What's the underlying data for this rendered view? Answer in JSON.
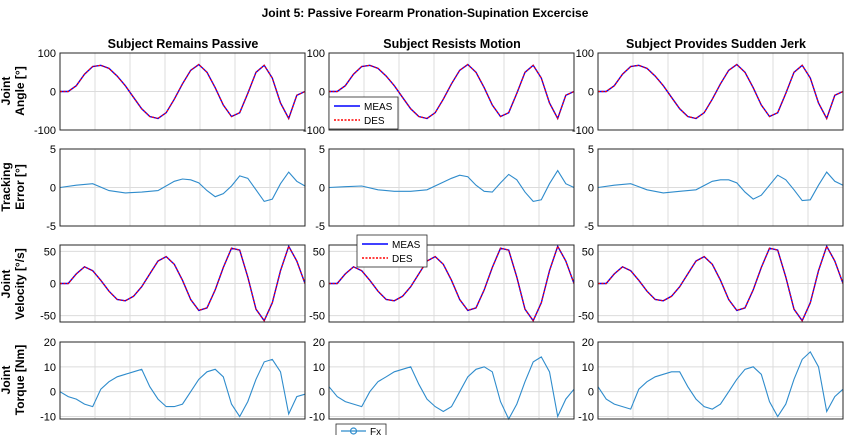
{
  "figure_title": "Joint 5: Passive Forearm Pronation-Supination Excercise",
  "column_titles": [
    "Subject Remains Passive",
    "Subject Resists Motion",
    "Subject Provides Sudden Jerk"
  ],
  "row_ylabels": [
    {
      "line1": "Joint",
      "line2": "Angle [°]"
    },
    {
      "line1": "Tracking",
      "line2": "Error [°]"
    },
    {
      "line1": "Joint",
      "line2": "Velocity [°/s]"
    },
    {
      "line1": "Joint",
      "line2": "Torque [Nm]"
    }
  ],
  "colors": {
    "meas": "#0000ff",
    "des": "#ff0000",
    "signal": "#2f8ccc",
    "grid": "#dcdcdc",
    "axis": "#262626"
  },
  "legends": {
    "angle": {
      "entries": [
        "MEAS",
        "DES"
      ]
    },
    "velocity": {
      "entries": [
        "MEAS",
        "DES"
      ]
    },
    "torque": {
      "entries": [
        "Fx"
      ]
    }
  },
  "chart_data": [
    {
      "type": "line",
      "row": "angle",
      "ylim": [
        -100,
        100
      ],
      "yticks": [
        -100,
        0,
        100
      ],
      "xlim": [
        0,
        15
      ],
      "grid": true,
      "series_names": [
        "MEAS",
        "DES"
      ],
      "columns": [
        {
          "x": [
            0,
            0.5,
            1,
            1.5,
            2,
            2.5,
            3,
            3.5,
            4,
            4.5,
            5,
            5.5,
            6,
            6.5,
            7,
            7.5,
            8,
            8.5,
            9,
            9.5,
            10,
            10.5,
            11,
            11.5,
            12,
            12.5,
            13,
            13.5,
            14,
            14.5,
            15
          ],
          "y": [
            0,
            0,
            15,
            45,
            65,
            68,
            60,
            40,
            15,
            -15,
            -45,
            -65,
            -70,
            -55,
            -20,
            20,
            55,
            70,
            50,
            10,
            -35,
            -65,
            -55,
            -5,
            50,
            68,
            35,
            -30,
            -70,
            -10,
            0
          ]
        },
        {
          "x": [
            0,
            0.5,
            1,
            1.5,
            2,
            2.5,
            3,
            3.5,
            4,
            4.5,
            5,
            5.5,
            6,
            6.5,
            7,
            7.5,
            8,
            8.5,
            9,
            9.5,
            10,
            10.5,
            11,
            11.5,
            12,
            12.5,
            13,
            13.5,
            14,
            14.5,
            15
          ],
          "y": [
            0,
            0,
            15,
            45,
            65,
            68,
            60,
            40,
            15,
            -15,
            -45,
            -65,
            -70,
            -55,
            -20,
            20,
            55,
            70,
            50,
            10,
            -35,
            -65,
            -55,
            -5,
            50,
            68,
            35,
            -30,
            -70,
            -10,
            0
          ]
        },
        {
          "x": [
            0,
            0.5,
            1,
            1.5,
            2,
            2.5,
            3,
            3.5,
            4,
            4.5,
            5,
            5.5,
            6,
            6.5,
            7,
            7.5,
            8,
            8.5,
            9,
            9.5,
            10,
            10.5,
            11,
            11.5,
            12,
            12.5,
            13,
            13.5,
            14,
            14.5,
            15
          ],
          "y": [
            0,
            0,
            15,
            45,
            65,
            68,
            60,
            40,
            15,
            -15,
            -45,
            -65,
            -70,
            -55,
            -20,
            20,
            55,
            70,
            50,
            10,
            -35,
            -65,
            -55,
            -5,
            50,
            68,
            35,
            -30,
            -70,
            -10,
            0
          ]
        }
      ]
    },
    {
      "type": "line",
      "row": "tracking_error",
      "ylim": [
        -5,
        5
      ],
      "yticks": [
        -5,
        0,
        5
      ],
      "xlim": [
        0,
        15
      ],
      "grid": true,
      "columns": [
        {
          "x": [
            0,
            1,
            2,
            3,
            4,
            5,
            6,
            7,
            7.5,
            8,
            8.5,
            9,
            9.5,
            10,
            10.5,
            11,
            11.5,
            12,
            12.5,
            13,
            13.5,
            14,
            14.5,
            15
          ],
          "y": [
            0,
            0.3,
            0.5,
            -0.4,
            -0.7,
            -0.6,
            -0.4,
            0.8,
            1.1,
            1.0,
            0.6,
            -0.4,
            -1.2,
            -0.8,
            0.2,
            1.5,
            1.2,
            -0.3,
            -1.8,
            -1.5,
            0.5,
            2.0,
            0.8,
            0.2
          ]
        },
        {
          "x": [
            0,
            1,
            2,
            3,
            4,
            5,
            6,
            7,
            7.5,
            8,
            8.5,
            9,
            9.5,
            10,
            10.5,
            11,
            11.5,
            12,
            12.5,
            13,
            13.5,
            14,
            14.5,
            15
          ],
          "y": [
            0,
            0.1,
            0.2,
            -0.3,
            -0.5,
            -0.5,
            -0.3,
            0.7,
            1.2,
            1.6,
            1.4,
            0.3,
            -0.5,
            -0.6,
            0.6,
            1.7,
            1.0,
            -0.6,
            -1.8,
            -1.6,
            0.5,
            2.2,
            0.5,
            0
          ]
        },
        {
          "x": [
            0,
            1,
            2,
            3,
            4,
            5,
            6,
            7,
            7.5,
            8,
            8.5,
            9,
            9.5,
            10,
            10.5,
            11,
            11.5,
            12,
            12.5,
            13,
            13.5,
            14,
            14.5,
            15
          ],
          "y": [
            0,
            0.3,
            0.5,
            -0.3,
            -0.7,
            -0.5,
            -0.3,
            0.8,
            1.0,
            1.0,
            0.6,
            -0.6,
            -1.5,
            -1.0,
            0.3,
            1.6,
            1.0,
            -0.3,
            -1.7,
            -1.6,
            0.3,
            2.0,
            0.8,
            0.3
          ]
        }
      ]
    },
    {
      "type": "line",
      "row": "velocity",
      "ylim": [
        -60,
        60
      ],
      "yticks": [
        -50,
        0,
        50
      ],
      "xlim": [
        0,
        15
      ],
      "grid": true,
      "series_names": [
        "MEAS",
        "DES"
      ],
      "columns": [
        {
          "x": [
            0,
            0.5,
            1,
            1.5,
            2,
            2.5,
            3,
            3.5,
            4,
            4.5,
            5,
            5.5,
            6,
            6.5,
            7,
            7.5,
            8,
            8.5,
            9,
            9.5,
            10,
            10.5,
            11,
            11.5,
            12,
            12.5,
            13,
            13.5,
            14,
            14.5,
            15
          ],
          "y": [
            0,
            0,
            15,
            26,
            20,
            5,
            -12,
            -25,
            -27,
            -20,
            -5,
            15,
            35,
            42,
            30,
            5,
            -25,
            -42,
            -38,
            -10,
            25,
            55,
            52,
            10,
            -40,
            -58,
            -30,
            20,
            58,
            35,
            0
          ]
        },
        {
          "x": [
            0,
            0.5,
            1,
            1.5,
            2,
            2.5,
            3,
            3.5,
            4,
            4.5,
            5,
            5.5,
            6,
            6.5,
            7,
            7.5,
            8,
            8.5,
            9,
            9.5,
            10,
            10.5,
            11,
            11.5,
            12,
            12.5,
            13,
            13.5,
            14,
            14.5,
            15
          ],
          "y": [
            0,
            0,
            15,
            26,
            20,
            5,
            -12,
            -25,
            -27,
            -20,
            -5,
            15,
            35,
            42,
            30,
            5,
            -25,
            -42,
            -38,
            -10,
            25,
            55,
            52,
            10,
            -40,
            -58,
            -30,
            20,
            58,
            35,
            0
          ]
        },
        {
          "x": [
            0,
            0.5,
            1,
            1.5,
            2,
            2.5,
            3,
            3.5,
            4,
            4.5,
            5,
            5.5,
            6,
            6.5,
            7,
            7.5,
            8,
            8.5,
            9,
            9.5,
            10,
            10.5,
            11,
            11.5,
            12,
            12.5,
            13,
            13.5,
            14,
            14.5,
            15
          ],
          "y": [
            0,
            0,
            15,
            26,
            20,
            5,
            -12,
            -25,
            -27,
            -20,
            -5,
            15,
            35,
            42,
            30,
            5,
            -25,
            -42,
            -38,
            -10,
            25,
            55,
            52,
            10,
            -40,
            -58,
            -30,
            20,
            58,
            35,
            0
          ]
        }
      ]
    },
    {
      "type": "line",
      "row": "torque",
      "ylim": [
        -11,
        20
      ],
      "yticks": [
        -10,
        0,
        10,
        20
      ],
      "xlim": [
        0,
        15
      ],
      "grid": true,
      "series_names": [
        "Fx"
      ],
      "columns": [
        {
          "x": [
            0,
            0.5,
            1,
            1.5,
            2,
            2.5,
            3,
            3.5,
            4,
            4.5,
            5,
            5.5,
            6,
            6.5,
            7,
            7.5,
            8,
            8.5,
            9,
            9.5,
            10,
            10.5,
            11,
            11.5,
            12,
            12.5,
            13,
            13.5,
            14,
            14.5,
            15
          ],
          "y": [
            0,
            -2,
            -3,
            -5,
            -6,
            1,
            4,
            6,
            7,
            8,
            9,
            2,
            -3,
            -6,
            -6,
            -5,
            0,
            5,
            8,
            9,
            6,
            -5,
            -10,
            -4,
            5,
            12,
            13,
            8,
            -9,
            -2,
            -1
          ]
        },
        {
          "x": [
            0,
            0.5,
            1,
            1.5,
            2,
            2.5,
            3,
            3.5,
            4,
            4.5,
            5,
            5.5,
            6,
            6.5,
            7,
            7.5,
            8,
            8.5,
            9,
            9.5,
            10,
            10.5,
            11,
            11.5,
            12,
            12.5,
            13,
            13.5,
            14,
            14.5,
            15
          ],
          "y": [
            2,
            -2,
            -4,
            -5,
            -6,
            0,
            4,
            6,
            8,
            9,
            10,
            3,
            -3,
            -6,
            -8,
            -6,
            0,
            6,
            9,
            10,
            8,
            -4,
            -11,
            -5,
            4,
            12,
            14,
            8,
            -10,
            -3,
            1
          ]
        },
        {
          "x": [
            0,
            0.5,
            1,
            1.5,
            2,
            2.5,
            3,
            3.5,
            4,
            4.5,
            5,
            5.5,
            6,
            6.5,
            7,
            7.5,
            8,
            8.5,
            9,
            9.5,
            10,
            10.5,
            11,
            11.5,
            12,
            12.5,
            13,
            13.5,
            14,
            14.5,
            15
          ],
          "y": [
            2,
            -3,
            -5,
            -6,
            -7,
            1,
            4,
            6,
            7,
            8,
            8,
            2,
            -3,
            -6,
            -7,
            -5,
            0,
            5,
            9,
            10,
            7,
            -4,
            -10,
            -5,
            5,
            13,
            16,
            10,
            -8,
            -2,
            1
          ]
        }
      ]
    }
  ]
}
